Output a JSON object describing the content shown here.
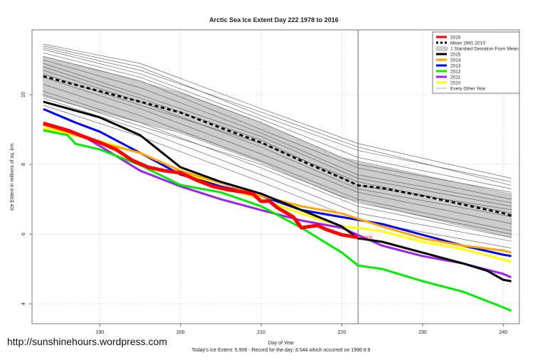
{
  "chart_data": {
    "type": "line",
    "title": "Arctic Sea Ice Extent Day 222 1978 to 2016",
    "xlabel": "Day of Year",
    "ylabel": "Ice Extent in millions of sq. km.",
    "xlim": [
      181.6,
      242
    ],
    "ylim": [
      3.43,
      11.86
    ],
    "xticks": [
      190,
      200,
      210,
      220,
      230,
      240
    ],
    "yticks": [
      4,
      6,
      8,
      10
    ],
    "grid": true,
    "legend_position": "top-right",
    "current_day_marker": 222,
    "current_label": "5.906",
    "series": [
      {
        "name": "2016",
        "color": "#ff0000",
        "width": 5,
        "points": [
          [
            183,
            9.18
          ],
          [
            186,
            8.98
          ],
          [
            188,
            8.8
          ],
          [
            190,
            8.63
          ],
          [
            192,
            8.43
          ],
          [
            194,
            8.12
          ],
          [
            196,
            7.92
          ],
          [
            198,
            7.82
          ],
          [
            200,
            7.76
          ],
          [
            202,
            7.55
          ],
          [
            204,
            7.37
          ],
          [
            206,
            7.27
          ],
          [
            208,
            7.2
          ],
          [
            209,
            7.15
          ],
          [
            210,
            6.94
          ],
          [
            211,
            6.95
          ],
          [
            212,
            6.76
          ],
          [
            214,
            6.49
          ],
          [
            215,
            6.18
          ],
          [
            216,
            6.22
          ],
          [
            217,
            6.25
          ],
          [
            218,
            6.14
          ],
          [
            220,
            5.98
          ],
          [
            222,
            5.906
          ]
        ]
      },
      {
        "name": "Mean 1981-2010",
        "color": "#000000",
        "width": 3,
        "dash": "5,4",
        "points": [
          [
            183,
            10.53
          ],
          [
            190,
            10.1
          ],
          [
            195,
            9.8
          ],
          [
            200,
            9.49
          ],
          [
            205,
            9.05
          ],
          [
            210,
            8.63
          ],
          [
            215,
            8.1
          ],
          [
            220,
            7.61
          ],
          [
            222,
            7.4
          ],
          [
            225,
            7.32
          ],
          [
            230,
            7.1
          ],
          [
            235,
            6.85
          ],
          [
            240,
            6.6
          ],
          [
            241,
            6.53
          ]
        ]
      },
      {
        "name": "2015",
        "color": "#000000",
        "width": 3,
        "points": [
          [
            183,
            9.8
          ],
          [
            190,
            9.35
          ],
          [
            195,
            8.84
          ],
          [
            200,
            7.92
          ],
          [
            205,
            7.5
          ],
          [
            210,
            7.16
          ],
          [
            215,
            6.69
          ],
          [
            220,
            6.22
          ],
          [
            222,
            5.88
          ],
          [
            225,
            5.78
          ],
          [
            230,
            5.47
          ],
          [
            235,
            5.16
          ],
          [
            238,
            4.95
          ],
          [
            240,
            4.69
          ],
          [
            241,
            4.65
          ]
        ]
      },
      {
        "name": "2014",
        "color": "#ffa500",
        "width": 3,
        "points": [
          [
            183,
            9.14
          ],
          [
            190,
            8.63
          ],
          [
            195,
            8.33
          ],
          [
            200,
            7.82
          ],
          [
            205,
            7.47
          ],
          [
            210,
            7.1
          ],
          [
            215,
            6.8
          ],
          [
            220,
            6.59
          ],
          [
            225,
            6.22
          ],
          [
            230,
            5.88
          ],
          [
            235,
            5.67
          ],
          [
            240,
            5.53
          ],
          [
            241,
            5.47
          ]
        ]
      },
      {
        "name": "2013",
        "color": "#0000ff",
        "width": 3,
        "points": [
          [
            183,
            9.59
          ],
          [
            187,
            9.2
          ],
          [
            190,
            8.94
          ],
          [
            195,
            8.33
          ],
          [
            200,
            7.71
          ],
          [
            205,
            7.37
          ],
          [
            210,
            7.1
          ],
          [
            215,
            6.69
          ],
          [
            220,
            6.49
          ],
          [
            225,
            6.29
          ],
          [
            230,
            5.98
          ],
          [
            235,
            5.67
          ],
          [
            240,
            5.41
          ],
          [
            241,
            5.37
          ]
        ]
      },
      {
        "name": "2012",
        "color": "#00ee00",
        "width": 3,
        "points": [
          [
            183,
            8.98
          ],
          [
            186,
            8.84
          ],
          [
            187,
            8.59
          ],
          [
            190,
            8.43
          ],
          [
            195,
            7.98
          ],
          [
            200,
            7.41
          ],
          [
            205,
            7.2
          ],
          [
            210,
            6.8
          ],
          [
            215,
            6.18
          ],
          [
            220,
            5.47
          ],
          [
            222,
            5.1
          ],
          [
            225,
            5.0
          ],
          [
            230,
            4.65
          ],
          [
            235,
            4.35
          ],
          [
            240,
            3.9
          ],
          [
            241,
            3.8
          ]
        ]
      },
      {
        "name": "2011",
        "color": "#a020f0",
        "width": 3,
        "points": [
          [
            183,
            9.14
          ],
          [
            188,
            8.8
          ],
          [
            190,
            8.53
          ],
          [
            195,
            7.82
          ],
          [
            200,
            7.37
          ],
          [
            205,
            7.0
          ],
          [
            210,
            6.69
          ],
          [
            215,
            6.39
          ],
          [
            220,
            6.18
          ],
          [
            225,
            5.67
          ],
          [
            230,
            5.37
          ],
          [
            235,
            5.16
          ],
          [
            240,
            4.86
          ],
          [
            241,
            4.76
          ]
        ]
      },
      {
        "name": "2010",
        "color": "#ffff00",
        "width": 3,
        "points": [
          [
            183,
            9.04
          ],
          [
            190,
            8.67
          ],
          [
            195,
            8.33
          ],
          [
            200,
            7.82
          ],
          [
            205,
            7.37
          ],
          [
            210,
            7.0
          ],
          [
            215,
            6.59
          ],
          [
            220,
            6.22
          ],
          [
            222,
            6.18
          ],
          [
            225,
            6.08
          ],
          [
            230,
            5.78
          ],
          [
            235,
            5.57
          ],
          [
            240,
            5.27
          ],
          [
            241,
            5.2
          ]
        ]
      }
    ],
    "std_band": {
      "name": "1 Standard Deviation From Mean",
      "color": "#cccccc",
      "days": [
        183,
        190,
        200,
        210,
        220,
        230,
        241
      ],
      "upper": [
        11.1,
        10.7,
        10.05,
        9.2,
        8.2,
        7.7,
        7.15
      ],
      "lower": [
        9.95,
        9.5,
        8.9,
        8.05,
        7.05,
        6.5,
        5.9
      ]
    },
    "other_years": {
      "name": "Every Other Year",
      "color": "#555555",
      "days": [
        183,
        195,
        210,
        222,
        241
      ],
      "values": [
        [
          11.45,
          10.9,
          9.6,
          8.6,
          7.6
        ],
        [
          11.4,
          10.8,
          9.4,
          8.4,
          7.5
        ],
        [
          11.3,
          10.6,
          9.3,
          8.2,
          7.3
        ],
        [
          11.2,
          10.5,
          9.2,
          8.0,
          7.2
        ],
        [
          11.1,
          10.4,
          9.0,
          7.9,
          7.0
        ],
        [
          11.0,
          10.2,
          8.9,
          7.7,
          6.9
        ],
        [
          10.9,
          10.0,
          8.8,
          7.6,
          6.8
        ],
        [
          10.8,
          9.9,
          8.7,
          7.4,
          6.7
        ],
        [
          10.7,
          9.8,
          8.5,
          7.3,
          6.5
        ],
        [
          10.5,
          9.6,
          8.3,
          7.2,
          6.3
        ],
        [
          10.3,
          9.4,
          8.1,
          7.0,
          6.1
        ],
        [
          10.1,
          9.2,
          7.9,
          6.8,
          5.9
        ],
        [
          9.9,
          9.0,
          7.7,
          6.6,
          5.8
        ],
        [
          9.7,
          8.8,
          7.5,
          6.4,
          5.6
        ],
        [
          10.0,
          9.1,
          8.0,
          6.9,
          6.0
        ],
        [
          10.6,
          9.7,
          8.6,
          7.5,
          6.6
        ],
        [
          11.35,
          10.7,
          9.5,
          8.5,
          7.4
        ]
      ]
    }
  },
  "watermark": "http://sunshinehours.wordpress.com",
  "footer": "Today's Ice Extent: 5.906  - Record for the day: 8.544 which occurred on 1996 8 9"
}
